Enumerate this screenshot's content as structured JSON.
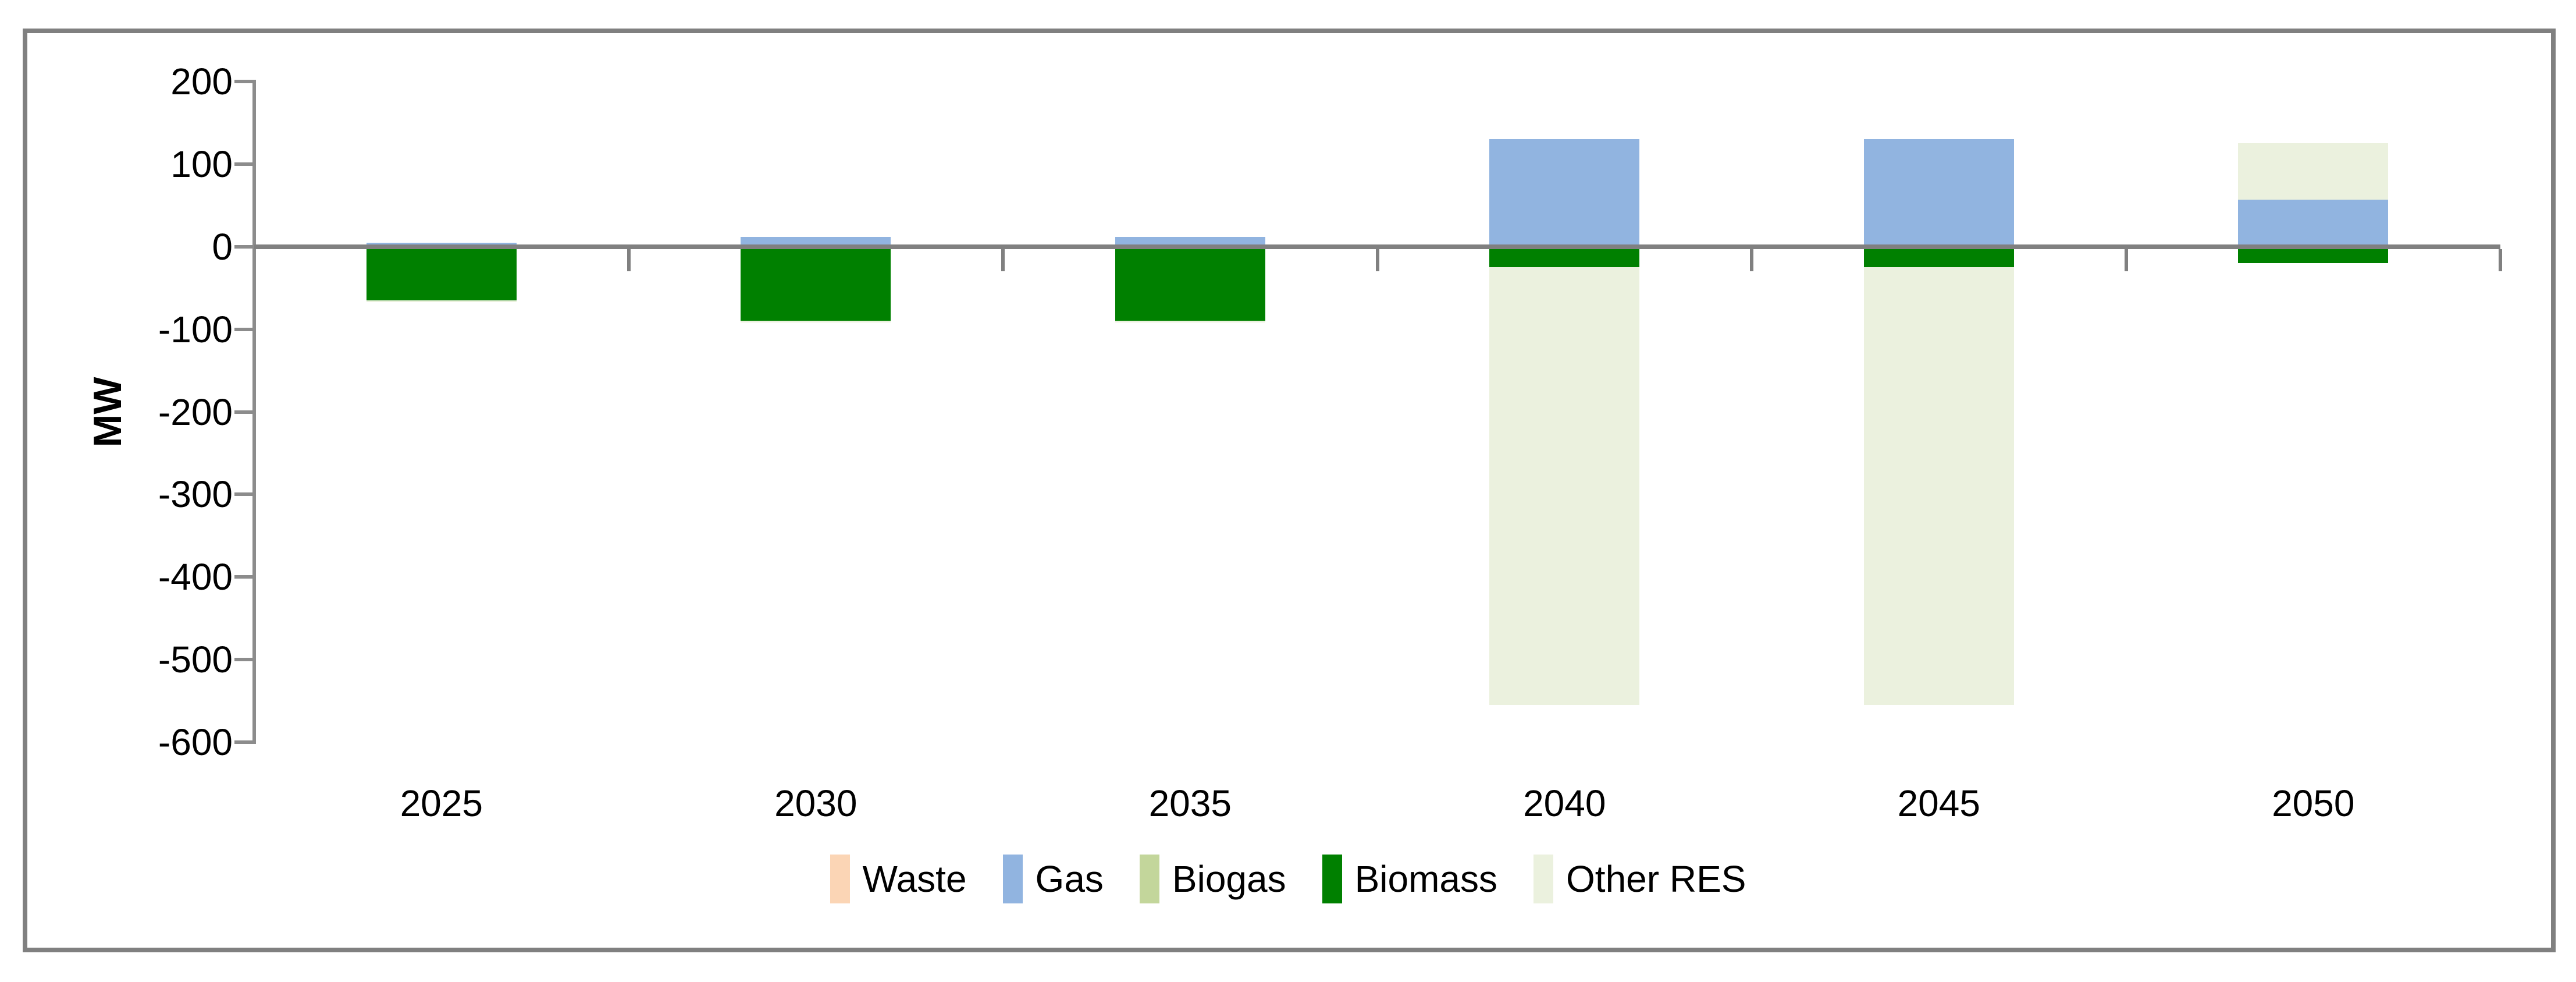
{
  "chart_data": {
    "type": "bar",
    "stacked": true,
    "title": "",
    "xlabel": "",
    "ylabel": "MW",
    "ylim": [
      -600,
      200
    ],
    "yticks": [
      200,
      100,
      0,
      -100,
      -200,
      -300,
      -400,
      -500,
      -600
    ],
    "grid": false,
    "legend_position": "bottom",
    "categories": [
      "2025",
      "2030",
      "2035",
      "2040",
      "2045",
      "2050"
    ],
    "series": [
      {
        "name": "Waste",
        "color": "#FBD5B5",
        "values": [
          0,
          0,
          0,
          0,
          0,
          0
        ]
      },
      {
        "name": "Gas",
        "color": "#91B4E0",
        "values": [
          5,
          12,
          12,
          130,
          130,
          57
        ]
      },
      {
        "name": "Biogas",
        "color": "#C3D69B",
        "values": [
          0,
          0,
          0,
          0,
          0,
          0
        ]
      },
      {
        "name": "Biomass",
        "color": "#008000",
        "values": [
          -65,
          -90,
          -90,
          -25,
          -25,
          -20
        ]
      },
      {
        "name": "Other RES",
        "color": "#EBF1DE",
        "values": [
          -2,
          -2,
          -2,
          -530,
          -530,
          68
        ]
      }
    ],
    "colors": {
      "axis": "#8C8C8C",
      "zero_line": "#808080",
      "border": "#808080",
      "text": "#000000"
    }
  }
}
